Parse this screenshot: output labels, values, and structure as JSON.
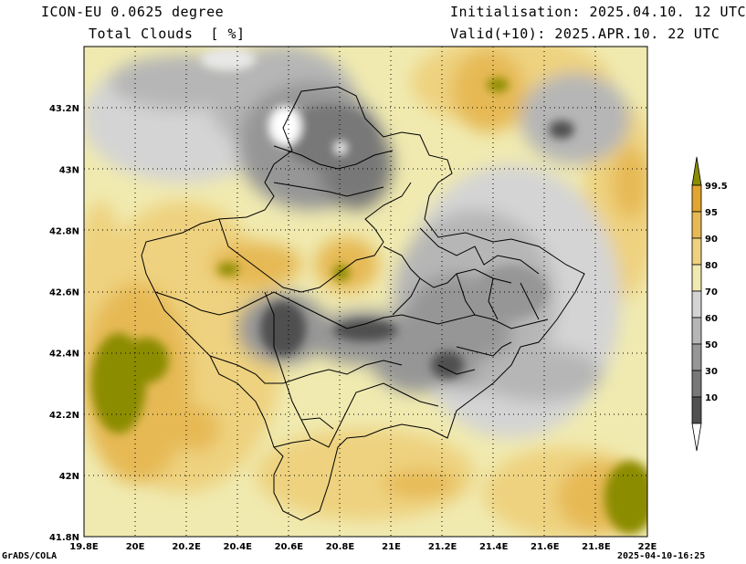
{
  "header": {
    "model": "ICON-EU 0.0625 degree",
    "variable": "Total Clouds  [ %]",
    "initialisation": "Initialisation: 2025.04.10. 12 UTC",
    "valid": "Valid(+10): 2025.APR.10. 22 UTC"
  },
  "footer": {
    "credit": "GrADS/COLA",
    "timestamp": "2025-04-10-16:25"
  },
  "map": {
    "lon_range": [
      19.8,
      22.0
    ],
    "lat_range": [
      41.8,
      43.4
    ],
    "lon_ticks": [
      "19.8E",
      "20E",
      "20.2E",
      "20.4E",
      "20.6E",
      "20.8E",
      "21E",
      "21.2E",
      "21.4E",
      "21.6E",
      "21.8E",
      "22E"
    ],
    "lat_ticks": [
      "41.8N",
      "42N",
      "42.2N",
      "42.4N",
      "42.6N",
      "42.8N",
      "43N",
      "43.2N"
    ],
    "gridlines": "dotted"
  },
  "colorbar": {
    "labels": [
      "99.5",
      "95",
      "90",
      "80",
      "70",
      "60",
      "50",
      "30",
      "10"
    ],
    "colors": [
      "#8c8c00",
      "#e1a530",
      "#e6b955",
      "#eed27f",
      "#f0eab0",
      "#d4d4d4",
      "#b6b6b6",
      "#969696",
      "#787878",
      "#505050",
      "#ffffff"
    ]
  }
}
